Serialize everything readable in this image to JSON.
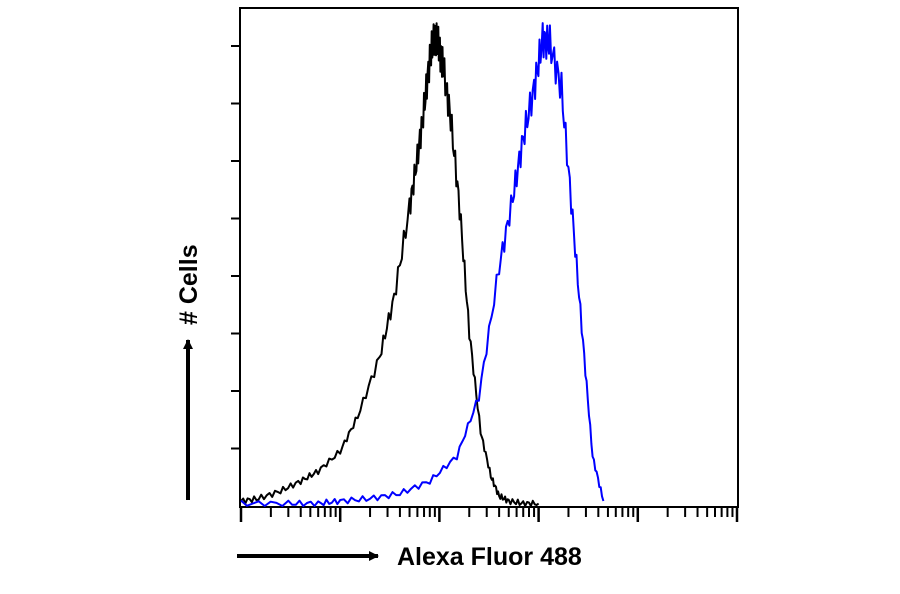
{
  "chart_data": {
    "type": "line",
    "title": "",
    "xlabel": "Alexa Fluor 488",
    "ylabel": "# Cells",
    "x_scale": "log",
    "xlim": [
      1,
      100000
    ],
    "ylim": [
      0,
      100
    ],
    "grid": false,
    "legend": "none",
    "series": [
      {
        "color": "#000000",
        "x": [
          1,
          1.5,
          2.5,
          4,
          6,
          10,
          15,
          25,
          35,
          50,
          60,
          70,
          80,
          90,
          100,
          110,
          130,
          160,
          200,
          260,
          330,
          400,
          500,
          700,
          1000
        ],
        "y": [
          1,
          1.5,
          3,
          5,
          7,
          11,
          18,
          30,
          42,
          60,
          70,
          80,
          90,
          95,
          92,
          88,
          78,
          60,
          35,
          15,
          6,
          2,
          1,
          0.5,
          0.5
        ]
      },
      {
        "color": "#0000ff",
        "x": [
          1,
          3,
          6,
          10,
          20,
          40,
          80,
          150,
          250,
          400,
          550,
          700,
          900,
          1100,
          1300,
          1700,
          2200,
          2800,
          3500,
          4500
        ],
        "y": [
          0.5,
          0.5,
          0.5,
          1,
          1.5,
          2.5,
          5,
          10,
          22,
          48,
          62,
          74,
          84,
          94,
          93,
          84,
          58,
          33,
          10,
          1
        ]
      }
    ]
  }
}
